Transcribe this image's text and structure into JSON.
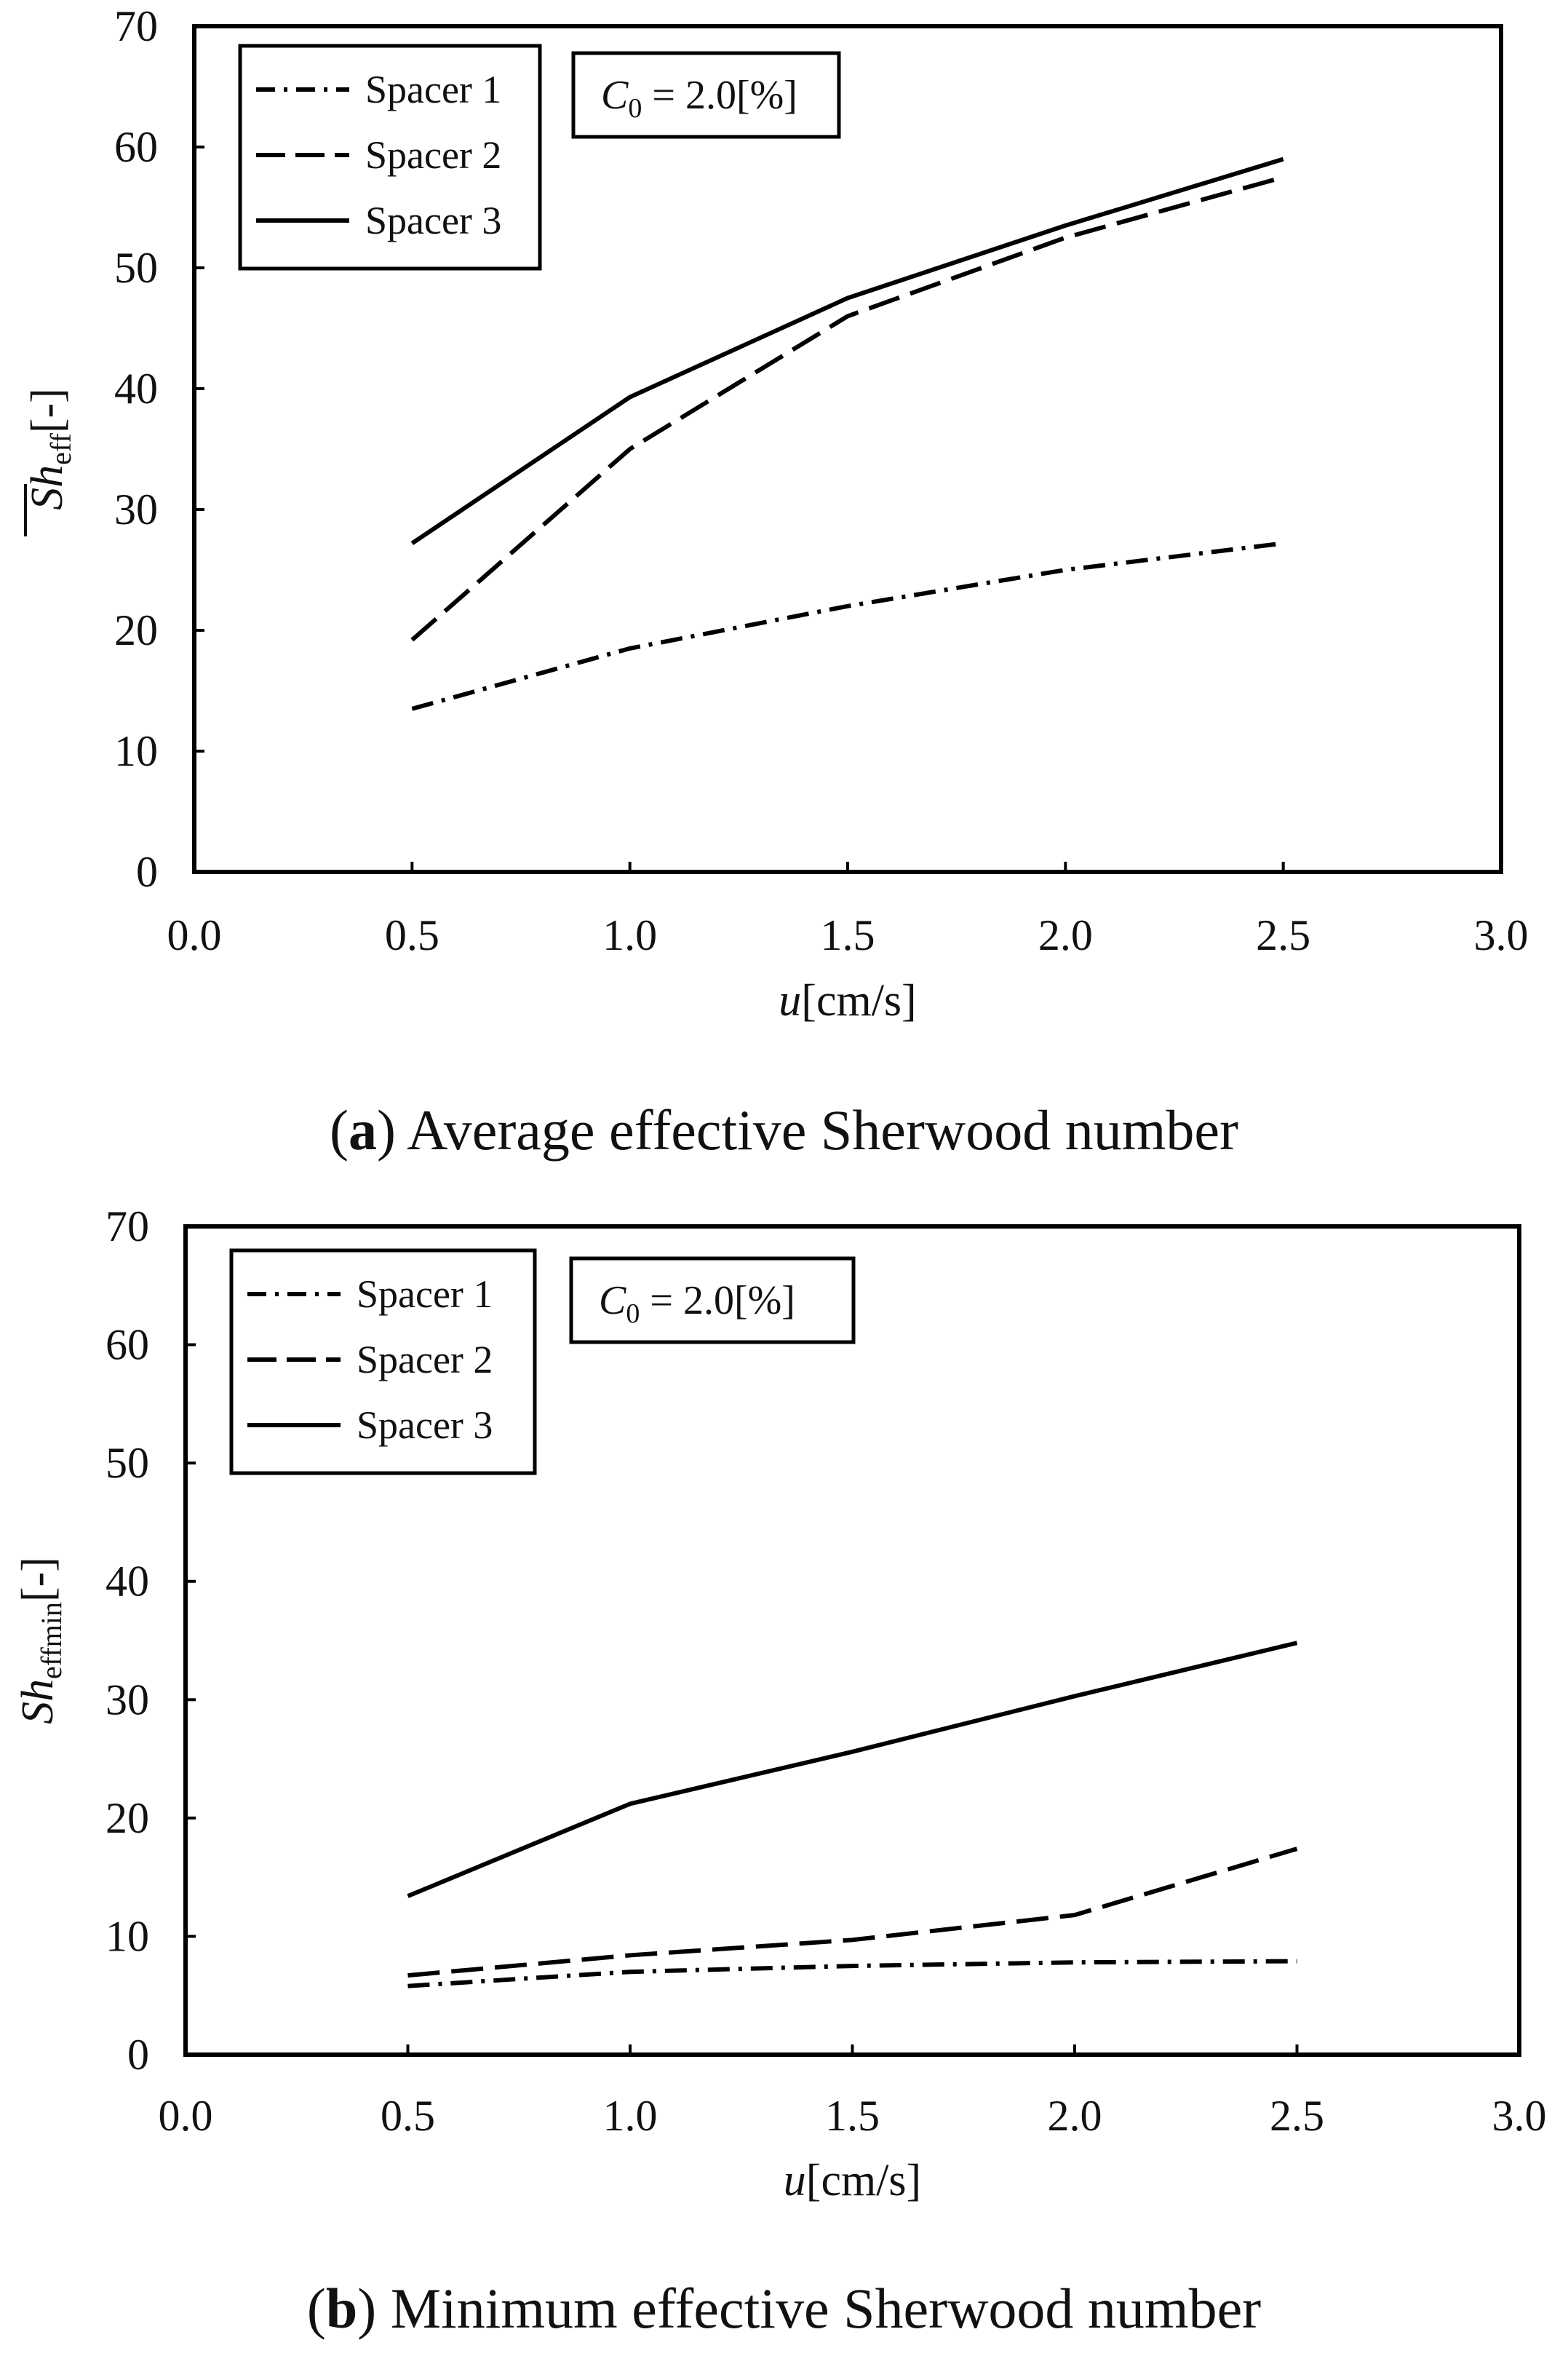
{
  "charts": [
    {
      "id": "a",
      "caption": {
        "letter": "a",
        "text": "Average effective Sherwood number"
      },
      "chart_data": {
        "type": "line",
        "title": "",
        "xlabel": "u[cm/s]",
        "ylabel": "Sh_eff[-]",
        "ylabel_main": "Sh",
        "ylabel_sub": "eff",
        "ylabel_unit": "[-]",
        "xlim": [
          0.0,
          3.0
        ],
        "ylim": [
          0,
          70
        ],
        "x_ticks": [
          "0.0",
          "0.5",
          "1.0",
          "1.5",
          "2.0",
          "2.5",
          "3.0"
        ],
        "y_ticks": [
          "0",
          "10",
          "20",
          "30",
          "40",
          "50",
          "60",
          "70"
        ],
        "x": [
          0.5,
          1.0,
          1.5,
          2.0,
          2.5
        ],
        "series": [
          {
            "name": "Spacer 1",
            "style": "dashdot",
            "values": [
              13.5,
              18.5,
              22.0,
              25.0,
              27.2
            ]
          },
          {
            "name": "Spacer 2",
            "style": "dashed",
            "values": [
              19.2,
              35.0,
              46.0,
              52.5,
              57.5
            ]
          },
          {
            "name": "Spacer 3",
            "style": "solid",
            "values": [
              27.2,
              39.3,
              47.5,
              53.5,
              59.0
            ]
          }
        ],
        "annotation": {
          "main": "C",
          "sub": "0",
          "text": " = 2.0[%]"
        },
        "legend_position": "top-left",
        "grid": false
      }
    },
    {
      "id": "b",
      "caption": {
        "letter": "b",
        "text": "Minimum effective Sherwood number"
      },
      "chart_data": {
        "type": "line",
        "title": "",
        "xlabel": "u[cm/s]",
        "ylabel": "Sh_effmin[-]",
        "ylabel_main": "Sh",
        "ylabel_sub": "effmin",
        "ylabel_unit": "[-]",
        "xlim": [
          0.0,
          3.0
        ],
        "ylim": [
          0,
          70
        ],
        "x_ticks": [
          "0.0",
          "0.5",
          "1.0",
          "1.5",
          "2.0",
          "2.5",
          "3.0"
        ],
        "y_ticks": [
          "0",
          "10",
          "20",
          "30",
          "40",
          "50",
          "60",
          "70"
        ],
        "x": [
          0.5,
          1.0,
          1.5,
          2.0,
          2.5
        ],
        "series": [
          {
            "name": "Spacer 1",
            "style": "dashdot",
            "values": [
              5.8,
              7.0,
              7.5,
              7.8,
              7.9
            ]
          },
          {
            "name": "Spacer 2",
            "style": "dashed",
            "values": [
              6.7,
              8.4,
              9.7,
              11.8,
              17.4
            ]
          },
          {
            "name": "Spacer 3",
            "style": "solid",
            "values": [
              13.4,
              21.2,
              25.6,
              30.3,
              34.8
            ]
          }
        ],
        "annotation": {
          "main": "C",
          "sub": "0",
          "text": " = 2.0[%]"
        },
        "legend_position": "top-left",
        "grid": false
      }
    }
  ]
}
